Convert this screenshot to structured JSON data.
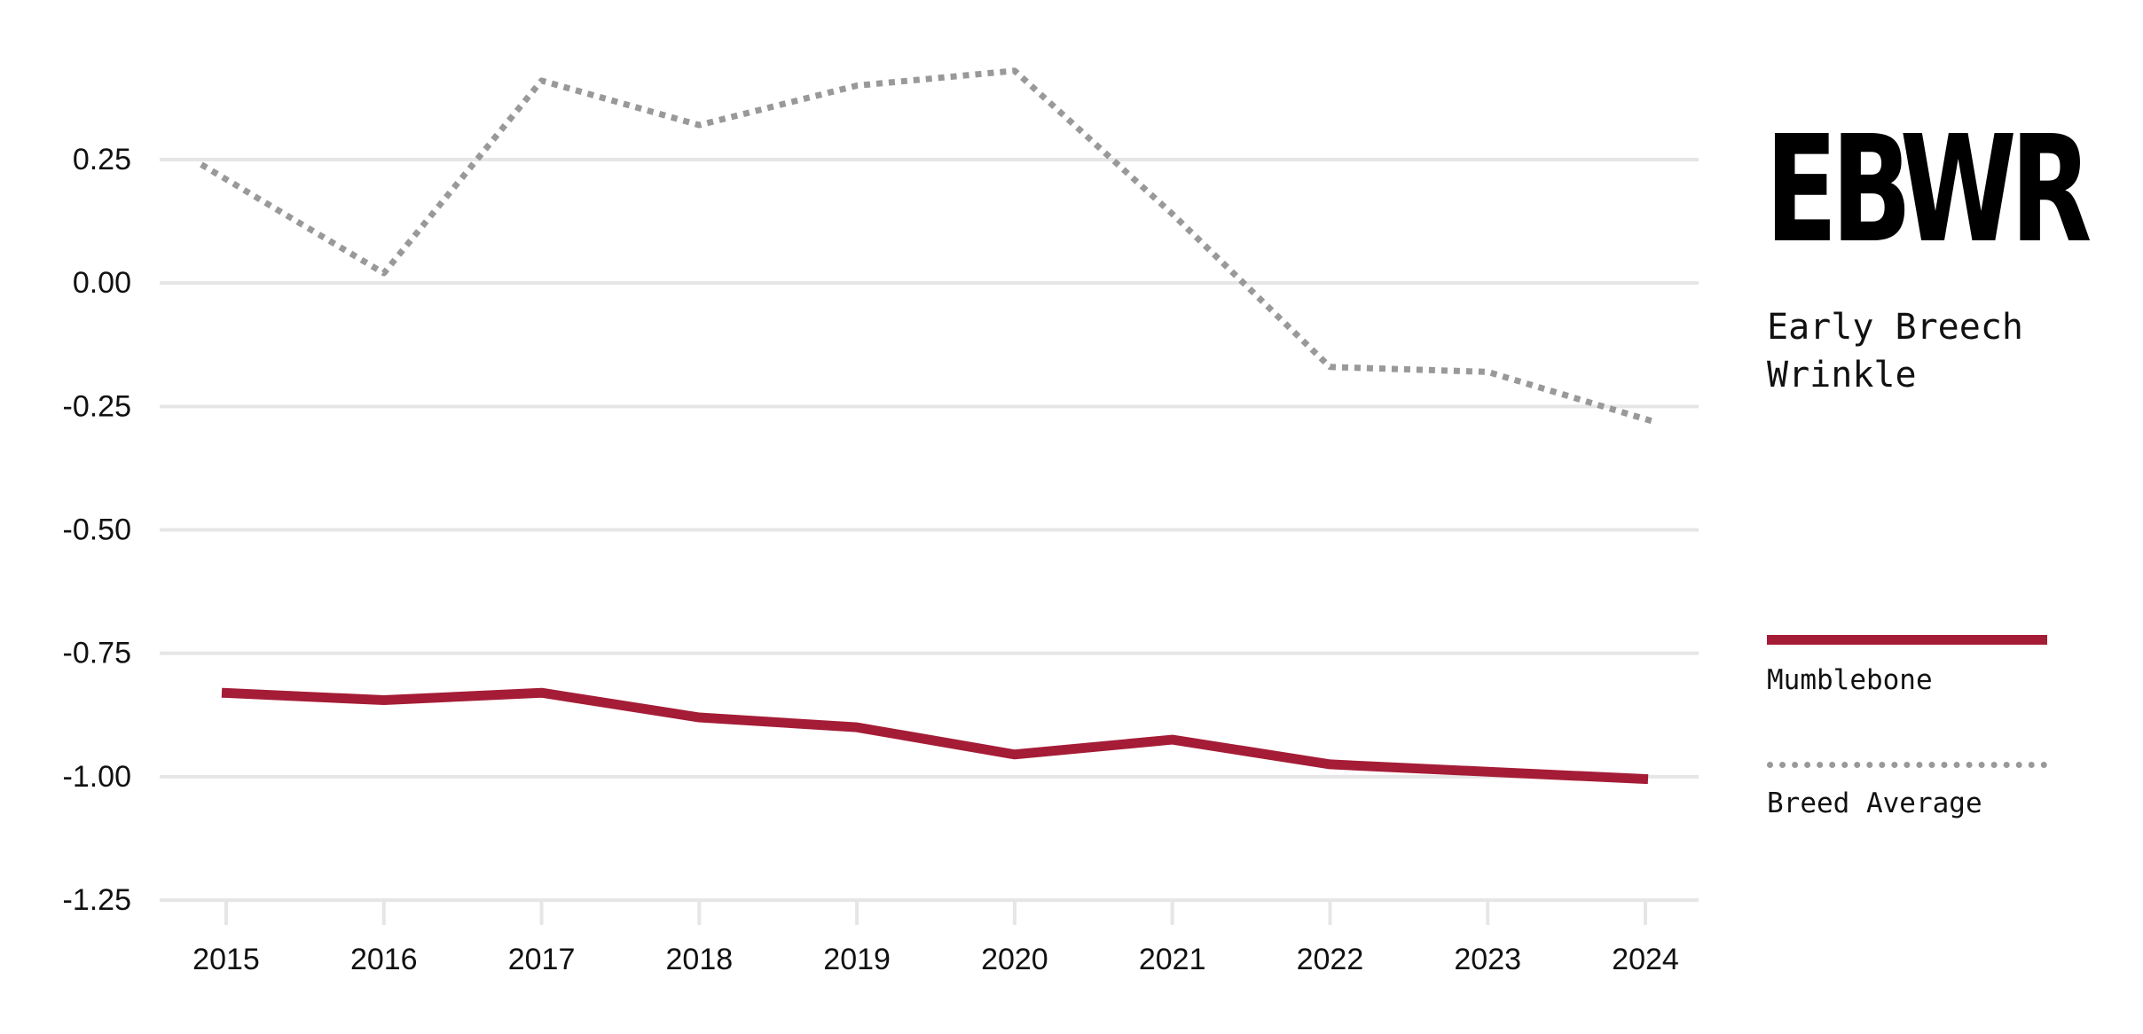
{
  "title": "EBWR",
  "subtitle": "Early Breech Wrinkle",
  "colors": {
    "primary": "#a51c36",
    "secondary": "#999999",
    "grid": "#e6e6e6"
  },
  "chart_data": {
    "type": "line",
    "title": "EBWR",
    "subtitle": "Early Breech Wrinkle",
    "xlabel": "",
    "ylabel": "",
    "x": [
      2015,
      2016,
      2017,
      2018,
      2019,
      2020,
      2021,
      2022,
      2023,
      2024
    ],
    "x_tick_labels": [
      "2015",
      "2016",
      "2017",
      "2018",
      "2019",
      "2020",
      "2021",
      "2022",
      "2023",
      "2024"
    ],
    "y_ticks": [
      0.25,
      0.0,
      -0.25,
      -0.5,
      -0.75,
      -1.0,
      -1.25
    ],
    "y_tick_labels": [
      "0.25",
      "0.00",
      "-0.25",
      "-0.50",
      "-0.75",
      "-1.00",
      "-1.25"
    ],
    "ylim": [
      -1.25,
      0.25
    ],
    "grid": "horizontal",
    "legend_placement": "right",
    "series": [
      {
        "name": "Mumblebone",
        "style": "solid",
        "color": "#a51c36",
        "values": [
          -0.83,
          -0.845,
          -0.83,
          -0.88,
          -0.9,
          -0.955,
          -0.925,
          -0.975,
          -0.99,
          -1.005
        ]
      },
      {
        "name": "Breed Average",
        "style": "dotted",
        "color": "#999999",
        "values": [
          0.24,
          0.02,
          0.41,
          0.32,
          0.4,
          0.43,
          0.14,
          -0.17,
          -0.18,
          -0.28
        ]
      }
    ]
  }
}
